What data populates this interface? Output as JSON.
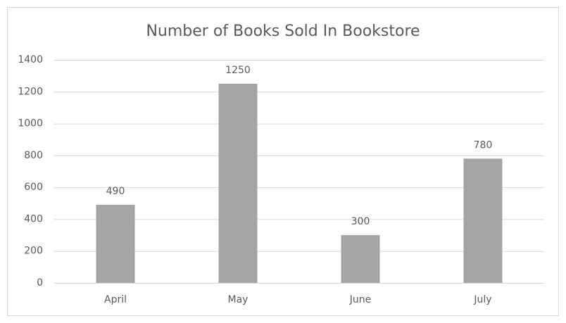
{
  "chart_data": {
    "type": "bar",
    "title": "Number of Books Sold In Bookstore",
    "categories": [
      "April",
      "May",
      "June",
      "July"
    ],
    "values": [
      490,
      1250,
      300,
      780
    ],
    "color": "#a5a5a5",
    "ylim": [
      0,
      1400
    ],
    "yticks": [
      0,
      200,
      400,
      600,
      800,
      1000,
      1200,
      1400
    ],
    "grid": true
  }
}
